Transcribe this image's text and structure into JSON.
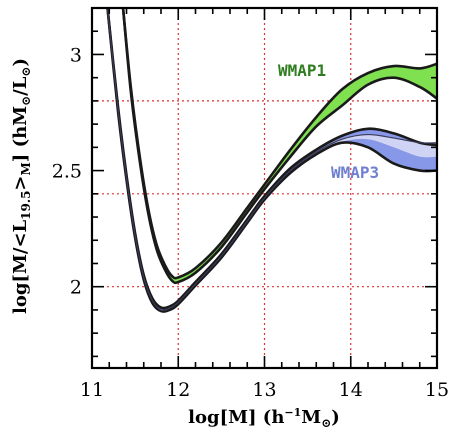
{
  "chart_data": {
    "type": "line",
    "title": "",
    "xlabel": "log[M]  (h",
    "xlabel_sup": "−1",
    "xlabel_tail": "M",
    "xlabel_sub": "⊙",
    "xlabel_close": ")",
    "ylabel": "log[M/<L",
    "ylabel_sub1": "19.5",
    "ylabel_mid": ">",
    "ylabel_sub2": "M",
    "ylabel_tail": "]  (hM",
    "ylabel_sun1": "⊙",
    "ylabel_slash": "/L",
    "ylabel_sun2": "⊙",
    "ylabel_close": ")",
    "xlim": [
      11,
      15
    ],
    "ylim": [
      1.65,
      3.2
    ],
    "xticks": [
      "11",
      "12",
      "13",
      "14",
      "15"
    ],
    "yticks": [
      "2",
      "2.5",
      "3"
    ],
    "grid": {
      "style": "dotted",
      "color": "#e03030",
      "x": [
        12,
        13,
        14
      ],
      "y": [
        2.0,
        2.4,
        2.8
      ]
    },
    "series": [
      {
        "name": "WMAP1",
        "color": "#2e7d1e",
        "fill": "#7fe050",
        "x": [
          11.36,
          11.45,
          11.55,
          11.65,
          11.75,
          11.85,
          11.93,
          12.0,
          12.2,
          12.5,
          12.8,
          13.0,
          13.3,
          13.6,
          13.9,
          14.2,
          14.5,
          14.8,
          15.0
        ],
        "upper": [
          3.2,
          2.86,
          2.57,
          2.34,
          2.18,
          2.09,
          2.045,
          2.04,
          2.08,
          2.19,
          2.34,
          2.44,
          2.59,
          2.73,
          2.85,
          2.92,
          2.95,
          2.94,
          2.96
        ],
        "lower": [
          3.2,
          2.84,
          2.55,
          2.32,
          2.16,
          2.07,
          2.025,
          2.02,
          2.06,
          2.17,
          2.32,
          2.42,
          2.56,
          2.69,
          2.78,
          2.87,
          2.9,
          2.86,
          2.81
        ]
      },
      {
        "name": "WMAP3",
        "color": "#5060c0",
        "fill": "#8898e8",
        "fill_inner": "#d0d4f4",
        "x": [
          11.18,
          11.3,
          11.4,
          11.5,
          11.6,
          11.7,
          11.8,
          11.9,
          12.0,
          12.2,
          12.5,
          12.8,
          13.0,
          13.3,
          13.6,
          13.9,
          14.2,
          14.5,
          14.8,
          15.0
        ],
        "upper": [
          3.2,
          2.78,
          2.48,
          2.23,
          2.05,
          1.95,
          1.91,
          1.915,
          1.94,
          2.02,
          2.14,
          2.29,
          2.39,
          2.51,
          2.59,
          2.65,
          2.68,
          2.66,
          2.62,
          2.61
        ],
        "lower": [
          3.2,
          2.76,
          2.46,
          2.21,
          2.03,
          1.93,
          1.895,
          1.9,
          1.925,
          2.005,
          2.125,
          2.275,
          2.375,
          2.49,
          2.57,
          2.62,
          2.6,
          2.53,
          2.5,
          2.5
        ],
        "inner_upper": [
          3.2,
          2.77,
          2.47,
          2.22,
          2.04,
          1.94,
          1.9,
          1.908,
          1.933,
          2.012,
          2.132,
          2.282,
          2.382,
          2.5,
          2.58,
          2.635,
          2.655,
          2.64,
          2.62,
          2.62
        ],
        "inner_lower": [
          3.2,
          2.77,
          2.47,
          2.22,
          2.04,
          1.94,
          1.9,
          1.908,
          1.933,
          2.012,
          2.132,
          2.282,
          2.382,
          2.5,
          2.58,
          2.625,
          2.635,
          2.6,
          2.56,
          2.56
        ]
      }
    ]
  }
}
